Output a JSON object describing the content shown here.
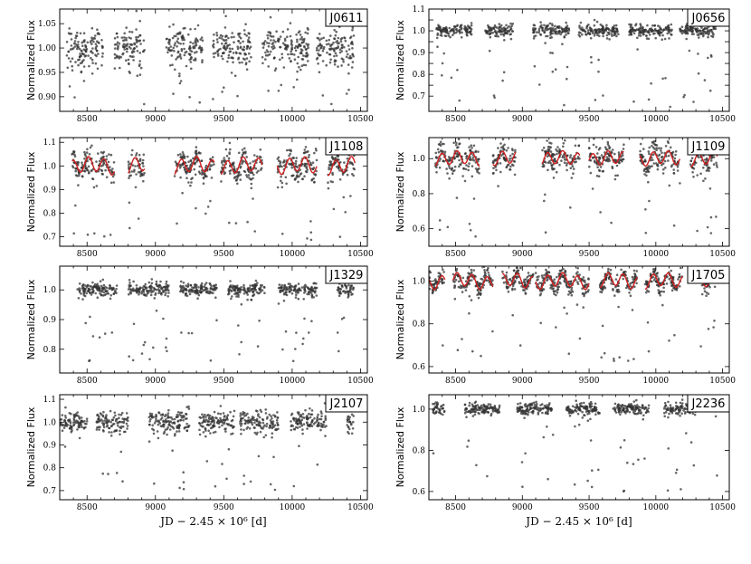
{
  "figure": {
    "common_xlabel": "JD − 2.45 × 10⁶ [d]"
  },
  "chart_data": [
    {
      "type": "scatter",
      "title": "J0611",
      "ylabel": "Normalized Flux",
      "xlabel": "",
      "xlim": [
        8300,
        10550
      ],
      "ylim": [
        0.87,
        1.08
      ],
      "xticks": [
        8500,
        9000,
        9500,
        10000,
        10500
      ],
      "yticks": [
        0.9,
        0.95,
        1.0,
        1.05
      ],
      "ytick_labels": [
        "0.90",
        "0.95",
        "1.00",
        "1.05"
      ],
      "segments": [
        [
          8350,
          8620
        ],
        [
          8700,
          8920
        ],
        [
          9080,
          9350
        ],
        [
          9420,
          9700
        ],
        [
          9780,
          10120
        ],
        [
          10180,
          10450
        ]
      ],
      "center": 1.0,
      "scatter": 0.02,
      "outlier_low": 0.88,
      "model": false
    },
    {
      "type": "scatter",
      "title": "J0656",
      "ylabel": "Normalized Flux",
      "xlabel": "",
      "xlim": [
        8300,
        10550
      ],
      "ylim": [
        0.63,
        1.1
      ],
      "xticks": [
        8500,
        9000,
        9500,
        10000,
        10500
      ],
      "yticks": [
        0.7,
        0.75,
        0.8,
        0.85,
        0.9,
        0.95,
        1.0,
        1.05,
        1.1
      ],
      "ytick_labels": [
        "0.7",
        "",
        "0.8",
        "",
        "0.9",
        "",
        "1.0",
        "",
        "1.1"
      ],
      "segments": [
        [
          8350,
          8620
        ],
        [
          8720,
          8930
        ],
        [
          9080,
          9350
        ],
        [
          9420,
          9720
        ],
        [
          9800,
          10120
        ],
        [
          10180,
          10450
        ]
      ],
      "center": 1.0,
      "scatter": 0.015,
      "outlier_low": 0.65,
      "model": false
    },
    {
      "type": "scatter",
      "title": "J1108",
      "ylabel": "Normalized Flux",
      "xlabel": "",
      "xlim": [
        8300,
        10550
      ],
      "ylim": [
        0.66,
        1.12
      ],
      "xticks": [
        8500,
        9000,
        9500,
        10000,
        10500
      ],
      "yticks": [
        0.7,
        0.8,
        0.9,
        1.0,
        1.1
      ],
      "ytick_labels": [
        "0.7",
        "0.8",
        "0.9",
        "1.0",
        "1.1"
      ],
      "segments": [
        [
          8390,
          8700
        ],
        [
          8800,
          8920
        ],
        [
          9140,
          9430
        ],
        [
          9480,
          9780
        ],
        [
          9890,
          10180
        ],
        [
          10260,
          10460
        ]
      ],
      "center": 1.0,
      "scatter": 0.03,
      "outlier_low": 0.68,
      "model": true
    },
    {
      "type": "scatter",
      "title": "J1109",
      "ylabel": "Normalized Flux",
      "xlabel": "",
      "xlim": [
        8300,
        10550
      ],
      "ylim": [
        0.5,
        1.12
      ],
      "xticks": [
        8500,
        9000,
        9500,
        10000,
        10500
      ],
      "yticks": [
        0.6,
        0.8,
        1.0
      ],
      "ytick_labels": [
        "0.6",
        "0.8",
        "1.0"
      ],
      "segments": [
        [
          8350,
          8680
        ],
        [
          8780,
          8950
        ],
        [
          9150,
          9430
        ],
        [
          9500,
          9760
        ],
        [
          9880,
          10180
        ],
        [
          10260,
          10460
        ]
      ],
      "center": 1.0,
      "scatter": 0.04,
      "outlier_low": 0.55,
      "model": true
    },
    {
      "type": "scatter",
      "title": "J1329",
      "ylabel": "Normalized Flux",
      "xlabel": "",
      "xlim": [
        8300,
        10550
      ],
      "ylim": [
        0.72,
        1.08
      ],
      "xticks": [
        8500,
        9000,
        9500,
        10000,
        10500
      ],
      "yticks": [
        0.8,
        0.9,
        1.0
      ],
      "ytick_labels": [
        "0.8",
        "0.9",
        "1.0"
      ],
      "segments": [
        [
          8430,
          8720
        ],
        [
          8800,
          9100
        ],
        [
          9180,
          9450
        ],
        [
          9530,
          9800
        ],
        [
          9900,
          10180
        ],
        [
          10330,
          10450
        ]
      ],
      "center": 1.0,
      "scatter": 0.012,
      "outlier_low": 0.76,
      "model": false
    },
    {
      "type": "scatter",
      "title": "J1705",
      "ylabel": "Normalized Flux",
      "xlabel": "",
      "xlim": [
        8300,
        10550
      ],
      "ylim": [
        0.57,
        1.07
      ],
      "xticks": [
        8500,
        9000,
        9500,
        10000,
        10500
      ],
      "yticks": [
        0.6,
        0.8,
        1.0
      ],
      "ytick_labels": [
        "0.6",
        "0.8",
        "1.0"
      ],
      "segments": [
        [
          8300,
          8420
        ],
        [
          8480,
          8780
        ],
        [
          8850,
          9080
        ],
        [
          9100,
          9500
        ],
        [
          9580,
          9860
        ],
        [
          9920,
          10200
        ],
        [
          10330,
          10450
        ]
      ],
      "center": 1.0,
      "scatter": 0.02,
      "outlier_low": 0.6,
      "model": true
    },
    {
      "type": "scatter",
      "title": "J2107",
      "ylabel": "Normalized Flux",
      "xlabel": "",
      "xlim": [
        8300,
        10550
      ],
      "ylim": [
        0.66,
        1.12
      ],
      "xticks": [
        8500,
        9000,
        9500,
        10000,
        10500
      ],
      "yticks": [
        0.7,
        0.8,
        0.9,
        1.0,
        1.1
      ],
      "ytick_labels": [
        "0.7",
        "0.8",
        "0.9",
        "1.0",
        "1.1"
      ],
      "segments": [
        [
          8300,
          8500
        ],
        [
          8570,
          8800
        ],
        [
          8950,
          9250
        ],
        [
          9320,
          9580
        ],
        [
          9620,
          9900
        ],
        [
          9990,
          10250
        ],
        [
          10400,
          10450
        ]
      ],
      "center": 1.0,
      "scatter": 0.025,
      "outlier_low": 0.7,
      "model": false
    },
    {
      "type": "scatter",
      "title": "J2236",
      "ylabel": "Normalized Flux",
      "xlabel": "",
      "xlim": [
        8300,
        10550
      ],
      "ylim": [
        0.56,
        1.07
      ],
      "xticks": [
        8500,
        9000,
        9500,
        10000,
        10500
      ],
      "yticks": [
        0.6,
        0.8,
        1.0
      ],
      "ytick_labels": [
        "0.6",
        "0.8",
        "1.0"
      ],
      "segments": [
        [
          8330,
          8420
        ],
        [
          8570,
          8830
        ],
        [
          8960,
          9230
        ],
        [
          9330,
          9580
        ],
        [
          9680,
          9950
        ],
        [
          10060,
          10300
        ],
        [
          10430,
          10460
        ]
      ],
      "center": 1.0,
      "scatter": 0.015,
      "outlier_low": 0.6,
      "model": false
    }
  ]
}
